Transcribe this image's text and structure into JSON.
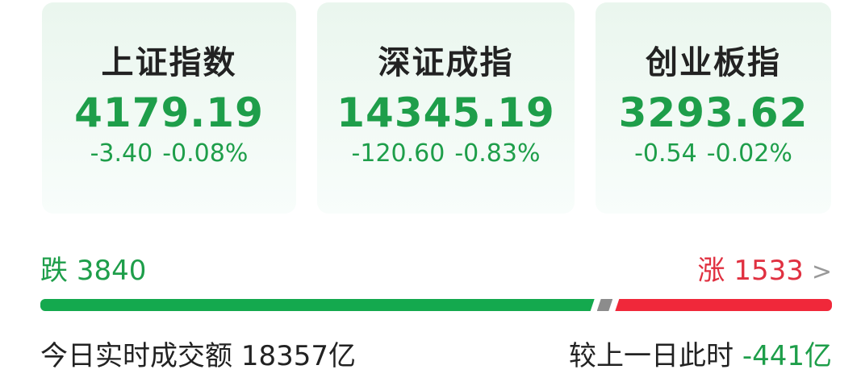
{
  "indices": [
    {
      "name": "上证指数",
      "price": "4179.19",
      "change": "-3.40",
      "pct": "-0.08%"
    },
    {
      "name": "深证成指",
      "price": "14345.19",
      "change": "-120.60",
      "pct": "-0.83%"
    },
    {
      "name": "创业板指",
      "price": "3293.62",
      "change": "-0.54",
      "pct": "-0.02%"
    }
  ],
  "breadth": {
    "fall_label": "跌",
    "fall_count": "3840",
    "rise_label": "涨",
    "rise_count": "1533",
    "chevron": ">"
  },
  "breadth_bar": {
    "fall_fraction": 0.7,
    "flat_fraction": 0.02,
    "rise_fraction": 0.28,
    "colors": {
      "fall": "#14a94e",
      "flat": "#8c8c8c",
      "rise": "#f0283a"
    }
  },
  "turnover": {
    "label": "今日实时成交额",
    "value": "18357亿",
    "compare_label": "较上一日此时",
    "compare_value": "-441亿"
  }
}
